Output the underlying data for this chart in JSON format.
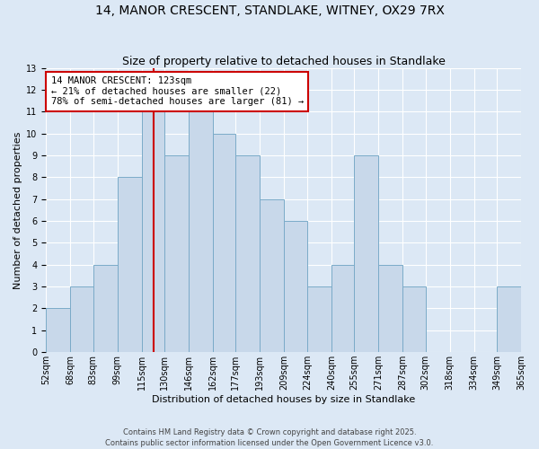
{
  "title": "14, MANOR CRESCENT, STANDLAKE, WITNEY, OX29 7RX",
  "subtitle": "Size of property relative to detached houses in Standlake",
  "xlabel": "Distribution of detached houses by size in Standlake",
  "ylabel": "Number of detached properties",
  "bin_edges": [
    52,
    68,
    83,
    99,
    115,
    130,
    146,
    162,
    177,
    193,
    209,
    224,
    240,
    255,
    271,
    287,
    302,
    318,
    334,
    349,
    365
  ],
  "bin_labels": [
    "52sqm",
    "68sqm",
    "83sqm",
    "99sqm",
    "115sqm",
    "130sqm",
    "146sqm",
    "162sqm",
    "177sqm",
    "193sqm",
    "209sqm",
    "224sqm",
    "240sqm",
    "255sqm",
    "271sqm",
    "287sqm",
    "302sqm",
    "318sqm",
    "334sqm",
    "349sqm",
    "365sqm"
  ],
  "counts": [
    2,
    3,
    4,
    8,
    11,
    9,
    11,
    10,
    9,
    7,
    6,
    3,
    4,
    9,
    4,
    3,
    0,
    0,
    0,
    3
  ],
  "bar_color": "#c8d8ea",
  "bar_edge_color": "#7aaac8",
  "background_color": "#dce8f5",
  "grid_color": "#ffffff",
  "red_line_x": 123,
  "annotation_title": "14 MANOR CRESCENT: 123sqm",
  "annotation_line1": "← 21% of detached houses are smaller (22)",
  "annotation_line2": "78% of semi-detached houses are larger (81) →",
  "annotation_box_color": "#ffffff",
  "annotation_box_edge": "#cc0000",
  "red_line_color": "#cc0000",
  "ylim": [
    0,
    13
  ],
  "yticks": [
    0,
    1,
    2,
    3,
    4,
    5,
    6,
    7,
    8,
    9,
    10,
    11,
    12,
    13
  ],
  "footer1": "Contains HM Land Registry data © Crown copyright and database right 2025.",
  "footer2": "Contains public sector information licensed under the Open Government Licence v3.0.",
  "title_fontsize": 10,
  "subtitle_fontsize": 9,
  "axis_label_fontsize": 8,
  "tick_fontsize": 7,
  "annotation_fontsize": 7.5,
  "footer_fontsize": 6
}
